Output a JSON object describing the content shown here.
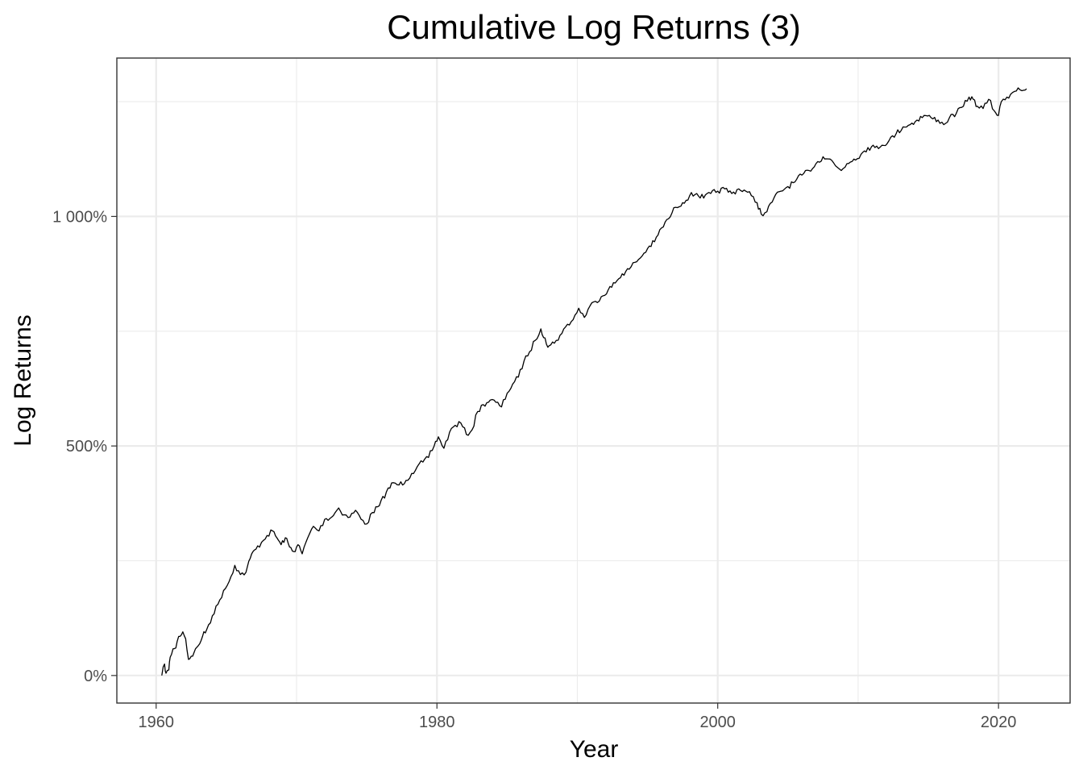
{
  "chart_data": {
    "type": "line",
    "title": "Cumulative Log Returns (3)",
    "xlabel": "Year",
    "ylabel": "Log Returns",
    "xlim": [
      1957.2,
      2025.1
    ],
    "ylim": [
      -60,
      1345
    ],
    "x_ticks": [
      1960,
      1980,
      2000,
      2020
    ],
    "x_tick_labels": [
      "1960",
      "1980",
      "2000",
      "2020"
    ],
    "x_minor": [
      1970,
      1990,
      2010
    ],
    "y_ticks": [
      0,
      500,
      1000
    ],
    "y_tick_labels": [
      "0%",
      "500%",
      "1 000%"
    ],
    "y_minor": [
      250,
      750,
      1250
    ],
    "grid": true,
    "legend": "none",
    "series": [
      {
        "x": [
          1960.4,
          1960.6,
          1960.7,
          1960.9,
          1961.0,
          1961.2,
          1961.4,
          1961.6,
          1961.9,
          1962.1,
          1962.3,
          1962.5,
          1962.7,
          1963.0,
          1963.3,
          1963.6,
          1964.0,
          1964.4,
          1964.8,
          1965.2,
          1965.6,
          1966.0,
          1966.4,
          1966.7,
          1966.9,
          1967.1,
          1967.5,
          1967.9,
          1968.3,
          1968.6,
          1968.9,
          1969.2,
          1969.5,
          1969.8,
          1970.1,
          1970.4,
          1970.8,
          1971.2,
          1971.6,
          1972.0,
          1972.5,
          1973.0,
          1973.4,
          1973.8,
          1974.2,
          1974.6,
          1975.0,
          1975.4,
          1975.9,
          1976.4,
          1976.9,
          1977.3,
          1977.8,
          1978.2,
          1978.6,
          1979.0,
          1979.4,
          1979.8,
          1980.1,
          1980.5,
          1980.9,
          1981.3,
          1981.7,
          1982.1,
          1982.5,
          1982.9,
          1983.3,
          1983.8,
          1984.2,
          1984.6,
          1985.0,
          1985.4,
          1985.8,
          1986.2,
          1986.6,
          1987.0,
          1987.4,
          1987.7,
          1987.9,
          1988.1,
          1988.5,
          1988.9,
          1989.3,
          1989.7,
          1990.1,
          1990.5,
          1990.9,
          1991.3,
          1991.7,
          1992.2,
          1992.7,
          1993.2,
          1993.7,
          1994.1,
          1994.5,
          1995.0,
          1995.5,
          1996.0,
          1996.5,
          1997.0,
          1997.5,
          1998.0,
          1998.5,
          1999.0,
          1999.5,
          2000.0,
          2000.5,
          2001.0,
          2001.5,
          2002.0,
          2002.4,
          2002.8,
          2003.1,
          2003.5,
          2004.0,
          2004.5,
          2005.0,
          2005.5,
          2006.0,
          2006.5,
          2007.0,
          2007.5,
          2008.0,
          2008.4,
          2008.8,
          2009.2,
          2009.7,
          2010.2,
          2010.7,
          2011.2,
          2011.7,
          2012.2,
          2012.7,
          2013.2,
          2013.7,
          2014.2,
          2014.7,
          2015.2,
          2015.7,
          2016.1,
          2016.5,
          2017.0,
          2017.5,
          2017.9,
          2018.2,
          2018.5,
          2018.9,
          2019.3,
          2019.7,
          2020.0,
          2020.2,
          2020.6,
          2021.0,
          2021.4,
          2021.8,
          2022.0
        ],
        "y": [
          0,
          25,
          5,
          12,
          40,
          58,
          60,
          85,
          95,
          80,
          35,
          42,
          50,
          65,
          85,
          100,
          130,
          155,
          185,
          205,
          240,
          220,
          225,
          255,
          270,
          275,
          290,
          305,
          315,
          300,
          285,
          300,
          280,
          270,
          285,
          265,
          300,
          325,
          315,
          340,
          345,
          365,
          350,
          345,
          360,
          340,
          330,
          355,
          370,
          400,
          420,
          415,
          425,
          440,
          455,
          465,
          475,
          500,
          520,
          495,
          530,
          545,
          550,
          525,
          535,
          575,
          590,
          600,
          595,
          585,
          615,
          635,
          650,
          685,
          705,
          730,
          755,
          735,
          715,
          720,
          730,
          745,
          765,
          775,
          800,
          780,
          805,
          815,
          825,
          840,
          855,
          875,
          885,
          900,
          910,
          930,
          945,
          975,
          995,
          1020,
          1030,
          1045,
          1050,
          1040,
          1050,
          1055,
          1060,
          1050,
          1060,
          1055,
          1045,
          1030,
          1005,
          1010,
          1040,
          1055,
          1065,
          1075,
          1090,
          1100,
          1115,
          1130,
          1125,
          1110,
          1100,
          1115,
          1125,
          1135,
          1150,
          1150,
          1155,
          1165,
          1180,
          1195,
          1200,
          1210,
          1220,
          1215,
          1210,
          1200,
          1215,
          1225,
          1240,
          1260,
          1255,
          1240,
          1235,
          1255,
          1230,
          1220,
          1250,
          1260,
          1270,
          1280,
          1275,
          1278
        ]
      }
    ]
  }
}
